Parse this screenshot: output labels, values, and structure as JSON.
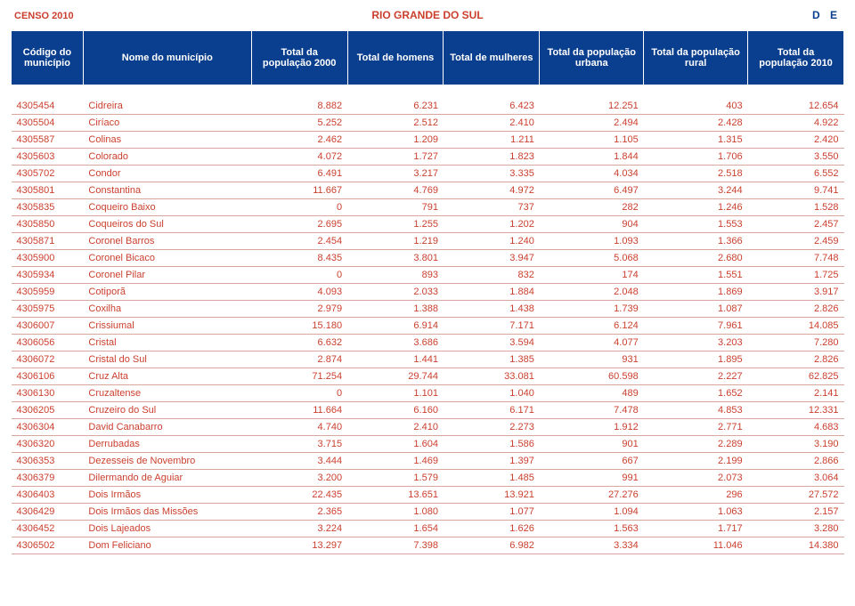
{
  "header": {
    "left": "CENSO 2010",
    "center": "RIO GRANDE DO SUL",
    "right": "D E"
  },
  "colors": {
    "header_bg": "#0a3e8e",
    "header_text": "#ffffff",
    "body_text": "#cb3f2e",
    "row_border": "#d9a79e",
    "page_bg": "#ffffff"
  },
  "table": {
    "columns": [
      "Código do município",
      "Nome do município",
      "Total da população 2000",
      "Total de homens",
      "Total de mulheres",
      "Total da população urbana",
      "Total da população rural",
      "Total da população 2010"
    ],
    "rows": [
      [
        "4305454",
        "Cidreira",
        "8.882",
        "6.231",
        "6.423",
        "12.251",
        "403",
        "12.654"
      ],
      [
        "4305504",
        "Ciríaco",
        "5.252",
        "2.512",
        "2.410",
        "2.494",
        "2.428",
        "4.922"
      ],
      [
        "4305587",
        "Colinas",
        "2.462",
        "1.209",
        "1.211",
        "1.105",
        "1.315",
        "2.420"
      ],
      [
        "4305603",
        "Colorado",
        "4.072",
        "1.727",
        "1.823",
        "1.844",
        "1.706",
        "3.550"
      ],
      [
        "4305702",
        "Condor",
        "6.491",
        "3.217",
        "3.335",
        "4.034",
        "2.518",
        "6.552"
      ],
      [
        "4305801",
        "Constantina",
        "11.667",
        "4.769",
        "4.972",
        "6.497",
        "3.244",
        "9.741"
      ],
      [
        "4305835",
        "Coqueiro Baixo",
        "0",
        "791",
        "737",
        "282",
        "1.246",
        "1.528"
      ],
      [
        "4305850",
        "Coqueiros do Sul",
        "2.695",
        "1.255",
        "1.202",
        "904",
        "1.553",
        "2.457"
      ],
      [
        "4305871",
        "Coronel Barros",
        "2.454",
        "1.219",
        "1.240",
        "1.093",
        "1.366",
        "2.459"
      ],
      [
        "4305900",
        "Coronel Bicaco",
        "8.435",
        "3.801",
        "3.947",
        "5.068",
        "2.680",
        "7.748"
      ],
      [
        "4305934",
        "Coronel Pilar",
        "0",
        "893",
        "832",
        "174",
        "1.551",
        "1.725"
      ],
      [
        "4305959",
        "Cotiporã",
        "4.093",
        "2.033",
        "1.884",
        "2.048",
        "1.869",
        "3.917"
      ],
      [
        "4305975",
        "Coxilha",
        "2.979",
        "1.388",
        "1.438",
        "1.739",
        "1.087",
        "2.826"
      ],
      [
        "4306007",
        "Crissiumal",
        "15.180",
        "6.914",
        "7.171",
        "6.124",
        "7.961",
        "14.085"
      ],
      [
        "4306056",
        "Cristal",
        "6.632",
        "3.686",
        "3.594",
        "4.077",
        "3.203",
        "7.280"
      ],
      [
        "4306072",
        "Cristal do Sul",
        "2.874",
        "1.441",
        "1.385",
        "931",
        "1.895",
        "2.826"
      ],
      [
        "4306106",
        "Cruz Alta",
        "71.254",
        "29.744",
        "33.081",
        "60.598",
        "2.227",
        "62.825"
      ],
      [
        "4306130",
        "Cruzaltense",
        "0",
        "1.101",
        "1.040",
        "489",
        "1.652",
        "2.141"
      ],
      [
        "4306205",
        "Cruzeiro do Sul",
        "11.664",
        "6.160",
        "6.171",
        "7.478",
        "4.853",
        "12.331"
      ],
      [
        "4306304",
        "David Canabarro",
        "4.740",
        "2.410",
        "2.273",
        "1.912",
        "2.771",
        "4.683"
      ],
      [
        "4306320",
        "Derrubadas",
        "3.715",
        "1.604",
        "1.586",
        "901",
        "2.289",
        "3.190"
      ],
      [
        "4306353",
        "Dezesseis de Novembro",
        "3.444",
        "1.469",
        "1.397",
        "667",
        "2.199",
        "2.866"
      ],
      [
        "4306379",
        "Dilermando de Aguiar",
        "3.200",
        "1.579",
        "1.485",
        "991",
        "2.073",
        "3.064"
      ],
      [
        "4306403",
        "Dois Irmãos",
        "22.435",
        "13.651",
        "13.921",
        "27.276",
        "296",
        "27.572"
      ],
      [
        "4306429",
        "Dois Irmãos das Missões",
        "2.365",
        "1.080",
        "1.077",
        "1.094",
        "1.063",
        "2.157"
      ],
      [
        "4306452",
        "Dois Lajeados",
        "3.224",
        "1.654",
        "1.626",
        "1.563",
        "1.717",
        "3.280"
      ],
      [
        "4306502",
        "Dom Feliciano",
        "13.297",
        "7.398",
        "6.982",
        "3.334",
        "11.046",
        "14.380"
      ]
    ]
  }
}
